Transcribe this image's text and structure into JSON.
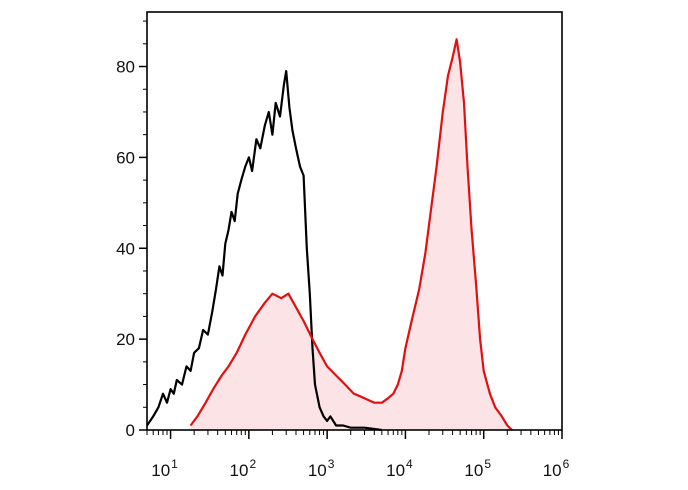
{
  "chart_data": {
    "type": "area",
    "title": "",
    "xlabel": "",
    "ylabel": "",
    "x_scale": "log",
    "xlim": [
      5,
      1000000
    ],
    "ylim": [
      0,
      92
    ],
    "grid": false,
    "legend": "none",
    "x_ticks": [
      {
        "value": 10,
        "base": "10",
        "exp": "1"
      },
      {
        "value": 100,
        "base": "10",
        "exp": "2"
      },
      {
        "value": 1000,
        "base": "10",
        "exp": "3"
      },
      {
        "value": 10000,
        "base": "10",
        "exp": "4"
      },
      {
        "value": 100000,
        "base": "10",
        "exp": "5"
      },
      {
        "value": 1000000,
        "base": "10",
        "exp": "6"
      }
    ],
    "y_ticks": [
      {
        "value": 0,
        "label": "0"
      },
      {
        "value": 20,
        "label": "20"
      },
      {
        "value": 40,
        "label": "40"
      },
      {
        "value": 60,
        "label": "60"
      },
      {
        "value": 80,
        "label": "80"
      }
    ],
    "series": [
      {
        "color": "#000000",
        "fill": "none",
        "points": [
          [
            5,
            1
          ],
          [
            6,
            3
          ],
          [
            7,
            5
          ],
          [
            8,
            8
          ],
          [
            9,
            6
          ],
          [
            10,
            9
          ],
          [
            11,
            8
          ],
          [
            12,
            11
          ],
          [
            14,
            10
          ],
          [
            16,
            14
          ],
          [
            18,
            13
          ],
          [
            20,
            17
          ],
          [
            23,
            18
          ],
          [
            26,
            22
          ],
          [
            30,
            21
          ],
          [
            34,
            26
          ],
          [
            38,
            31
          ],
          [
            42,
            36
          ],
          [
            46,
            34
          ],
          [
            50,
            41
          ],
          [
            55,
            44
          ],
          [
            60,
            48
          ],
          [
            66,
            46
          ],
          [
            72,
            52
          ],
          [
            80,
            55
          ],
          [
            90,
            58
          ],
          [
            100,
            60
          ],
          [
            110,
            57
          ],
          [
            125,
            64
          ],
          [
            140,
            62
          ],
          [
            160,
            67
          ],
          [
            180,
            70
          ],
          [
            200,
            65
          ],
          [
            220,
            72
          ],
          [
            250,
            69
          ],
          [
            280,
            76
          ],
          [
            300,
            79
          ],
          [
            330,
            71
          ],
          [
            360,
            66
          ],
          [
            400,
            62
          ],
          [
            450,
            58
          ],
          [
            500,
            56
          ],
          [
            550,
            40
          ],
          [
            600,
            30
          ],
          [
            650,
            18
          ],
          [
            700,
            10
          ],
          [
            800,
            5
          ],
          [
            900,
            3
          ],
          [
            1000,
            2
          ],
          [
            1100,
            3
          ],
          [
            1300,
            1
          ],
          [
            1600,
            1
          ],
          [
            2000,
            0.5
          ],
          [
            3000,
            0.5
          ],
          [
            5000,
            0
          ]
        ]
      },
      {
        "color": "#e01010",
        "fill": "#fbe3e6",
        "points": [
          [
            18,
            1
          ],
          [
            22,
            3
          ],
          [
            28,
            6
          ],
          [
            35,
            9
          ],
          [
            45,
            12
          ],
          [
            55,
            14
          ],
          [
            70,
            17
          ],
          [
            90,
            21
          ],
          [
            120,
            25
          ],
          [
            160,
            28
          ],
          [
            200,
            30
          ],
          [
            260,
            29
          ],
          [
            320,
            30
          ],
          [
            400,
            27
          ],
          [
            500,
            24
          ],
          [
            650,
            20
          ],
          [
            800,
            17
          ],
          [
            1000,
            14
          ],
          [
            1300,
            12
          ],
          [
            1700,
            10
          ],
          [
            2200,
            8
          ],
          [
            3000,
            7
          ],
          [
            4000,
            6
          ],
          [
            5000,
            6
          ],
          [
            6000,
            7
          ],
          [
            7000,
            8
          ],
          [
            8000,
            10
          ],
          [
            9000,
            13
          ],
          [
            10000,
            18
          ],
          [
            12000,
            24
          ],
          [
            15000,
            31
          ],
          [
            18000,
            39
          ],
          [
            21000,
            48
          ],
          [
            25000,
            58
          ],
          [
            30000,
            70
          ],
          [
            35000,
            78
          ],
          [
            40000,
            82
          ],
          [
            45000,
            86
          ],
          [
            50000,
            81
          ],
          [
            56000,
            72
          ],
          [
            62000,
            58
          ],
          [
            70000,
            44
          ],
          [
            80000,
            32
          ],
          [
            90000,
            20
          ],
          [
            100000,
            13
          ],
          [
            120000,
            8
          ],
          [
            140000,
            5
          ],
          [
            170000,
            3
          ],
          [
            200000,
            1
          ],
          [
            230000,
            0
          ]
        ]
      }
    ]
  }
}
